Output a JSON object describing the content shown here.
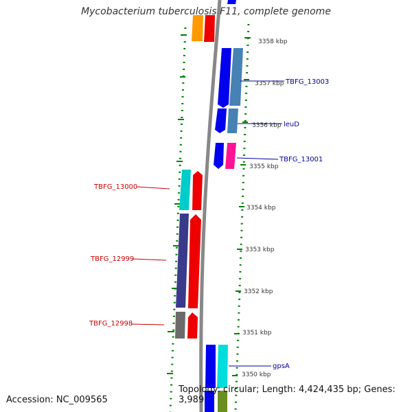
{
  "title": "Mycobacterium tuberculosis F11, complete genome",
  "footer": {
    "accession": "Accession: NC_009565",
    "topology": "Topology: circular; Length: 4,424,435 bp; Genes: 3,989"
  },
  "colors": {
    "backbone": "#888888",
    "ruler": "#008000",
    "label_reverse": "#cc0000",
    "label_forward": "#000099"
  },
  "kbp_labels": [
    "3358 kbp",
    "3357 kbp",
    "3356 kbp",
    "3355 kbp",
    "3354 kbp",
    "3353 kbp",
    "3352 kbp",
    "3351 kbp",
    "3350 kbp"
  ],
  "gene_labels": {
    "tbfg_13003": "TBFG_13003",
    "leud": "leuD",
    "tbfg_13001": "TBFG_13001",
    "tbfg_13000": "TBFG_13000",
    "tbfg_12999": "TBFG_12999",
    "tbfg_12998": "TBFG_12998",
    "gpsa": "gpsA"
  }
}
